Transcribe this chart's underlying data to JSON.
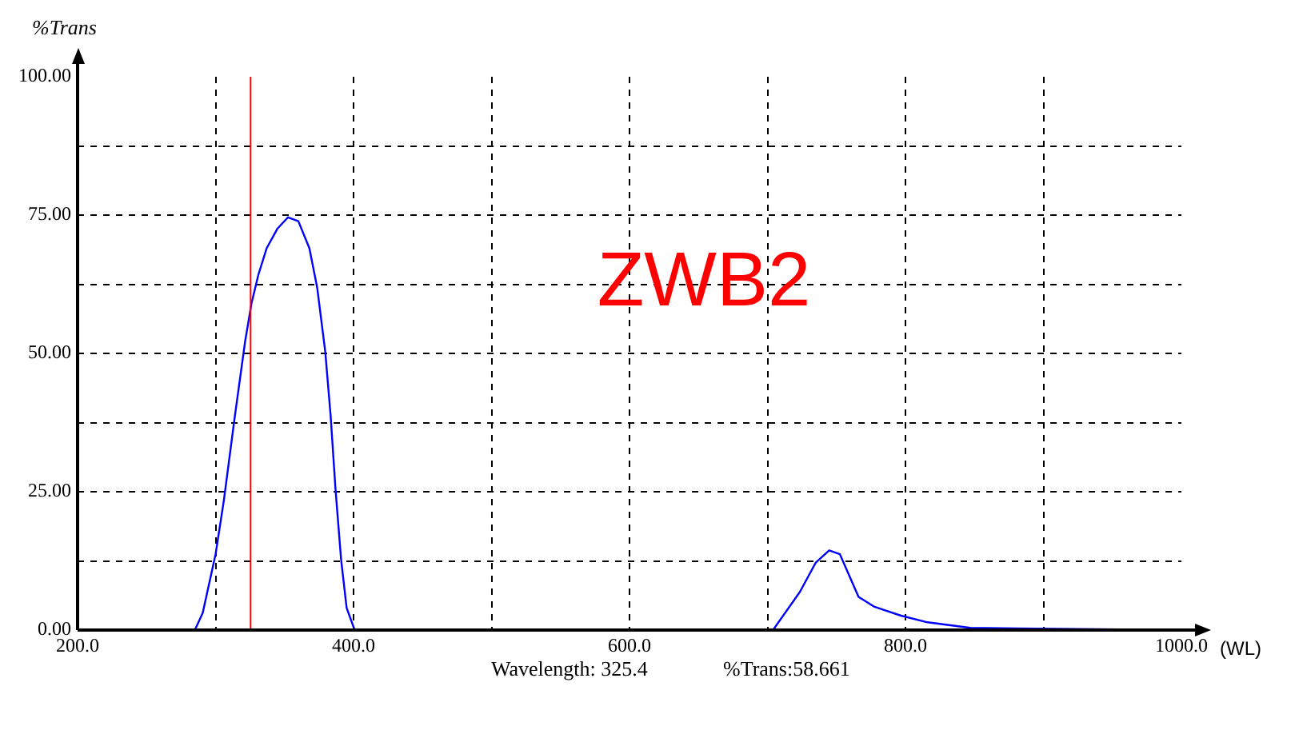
{
  "chart_data": {
    "type": "line",
    "title": "ZWB2",
    "xlabel": "(WL)",
    "ylabel": "%Trans",
    "annotations": [
      "Wavelength: 325.4",
      "%Trans:58.661"
    ],
    "x": [
      200,
      285,
      290.7,
      300,
      306,
      314,
      321.5,
      326,
      331,
      337,
      344.7,
      352.5,
      360,
      368,
      373.7,
      379.5,
      383.4,
      387,
      391,
      395,
      400.8,
      704,
      723.5,
      735,
      744.7,
      752.5,
      766,
      777.6,
      796.8,
      816,
      847,
      1000
    ],
    "series": [
      {
        "color": "#0000ff",
        "values": [
          0,
          0,
          3.1,
          13.7,
          23.4,
          38.7,
          52.3,
          59,
          64.2,
          69,
          72.5,
          74.6,
          73.9,
          69,
          61.8,
          50.3,
          38.7,
          25.2,
          12.7,
          4,
          0,
          0,
          6.9,
          12.2,
          14.4,
          13.7,
          6,
          4.2,
          2.6,
          1.4,
          0.4,
          0
        ]
      }
    ],
    "xlim": [
      200,
      1000
    ],
    "ylim": [
      0,
      100
    ],
    "xticks": [
      {
        "value": 200,
        "label": "200.0"
      },
      {
        "value": 300,
        "label": null
      },
      {
        "value": 400,
        "label": "400.0"
      },
      {
        "value": 500,
        "label": null
      },
      {
        "value": 600,
        "label": "600.0"
      },
      {
        "value": 700,
        "label": null
      },
      {
        "value": 800,
        "label": "800.0"
      },
      {
        "value": 900,
        "label": null
      },
      {
        "value": 1000,
        "label": "1000.0"
      }
    ],
    "yticks": [
      {
        "value": 0,
        "label": "0.00"
      },
      {
        "value": 12.5,
        "label": null
      },
      {
        "value": 25,
        "label": "25.00"
      },
      {
        "value": 37.5,
        "label": null
      },
      {
        "value": 50,
        "label": "50.00"
      },
      {
        "value": 62.5,
        "label": null
      },
      {
        "value": 75,
        "label": "75.00"
      },
      {
        "value": 87.5,
        "label": null
      },
      {
        "value": 100,
        "label": "100.00"
      }
    ],
    "ref_lines": [
      {
        "axis": "x",
        "value": 325.4,
        "color": "#ff0000"
      }
    ],
    "grid": true,
    "legend": false,
    "marker": "none",
    "line_style": "solid"
  }
}
